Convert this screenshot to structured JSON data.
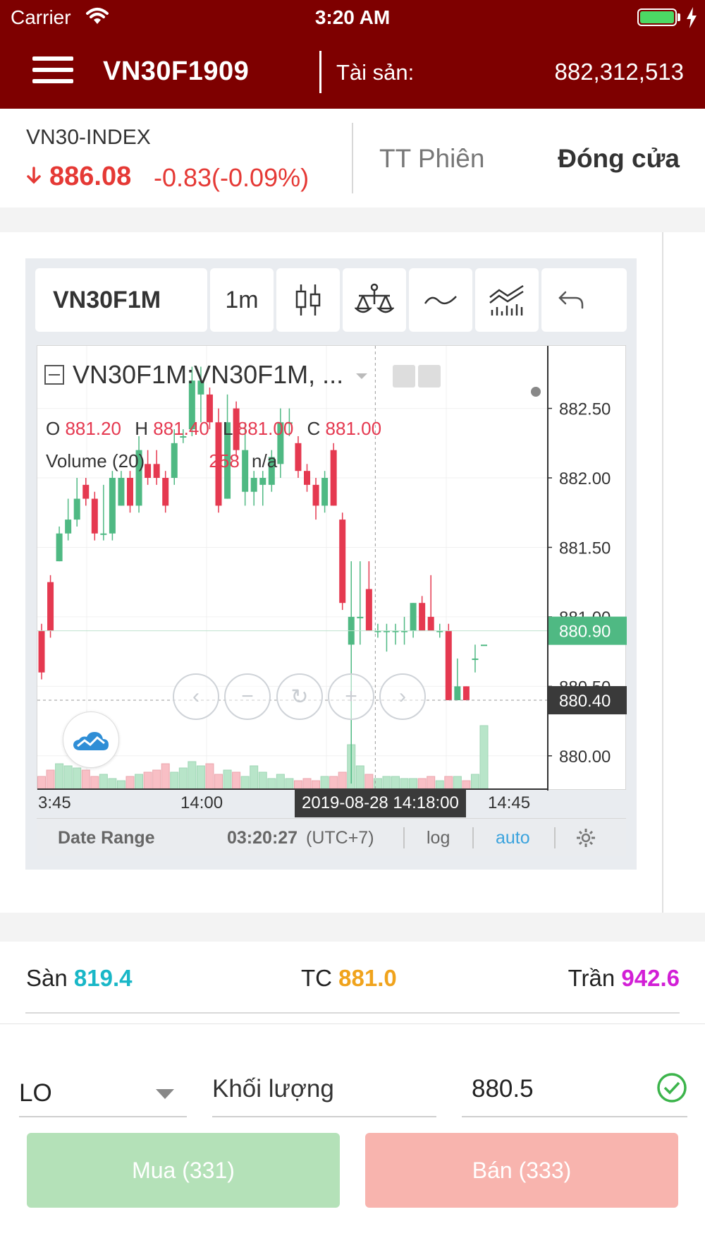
{
  "status_bar": {
    "carrier": "Carrier",
    "time": "3:20 AM"
  },
  "header": {
    "symbol": "VN30F1909",
    "asset_label": "Tài sản:",
    "asset_value": "882,312,513"
  },
  "index": {
    "name": "VN30-INDEX",
    "value": "886.08",
    "change": "-0.83(-0.09%)",
    "session_label": "TT Phiên",
    "session_state": "Đóng cửa"
  },
  "chart_toolbar": {
    "symbol": "VN30F1M",
    "interval": "1m"
  },
  "chart_legend": {
    "title": "VN30F1M:VN30F1M, ...",
    "o_label": "O",
    "o": "881.20",
    "h_label": "H",
    "h": "881.40",
    "l_label": "L",
    "l": "881.00",
    "c_label": "C",
    "c": "881.00",
    "volume_label": "Volume (20)",
    "volume_value": "258",
    "volume_ma": "n/a"
  },
  "chart_time_labels": {
    "left": "3:45",
    "mid": "14:00",
    "crosshair": "2019-08-28 14:18:00",
    "right": "14:45"
  },
  "chart_bottom_bar": {
    "date_range": "Date Range",
    "clock": "03:20:27",
    "timezone": "(UTC+7)",
    "log": "log",
    "auto": "auto"
  },
  "chart_data": {
    "type": "candlestick",
    "ylim": [
      879.75,
      882.95
    ],
    "y_ticks": [
      "882.50",
      "882.00",
      "881.50",
      "881.00",
      "880.50",
      "880.00"
    ],
    "price_labels": {
      "last": "880.90",
      "crosshair": "880.40"
    },
    "candles": [
      [
        880.9,
        880.6,
        880.95,
        880.55
      ],
      [
        881.25,
        880.9,
        881.3,
        880.85
      ],
      [
        881.4,
        881.6,
        881.65,
        881.4
      ],
      [
        881.6,
        881.7,
        881.85,
        881.55
      ],
      [
        881.7,
        881.85,
        882.0,
        881.65
      ],
      [
        881.95,
        881.85,
        882.0,
        881.8
      ],
      [
        881.85,
        881.6,
        881.9,
        881.55
      ],
      [
        881.6,
        881.6,
        881.95,
        881.55
      ],
      [
        881.6,
        882.0,
        882.05,
        881.55
      ],
      [
        881.8,
        882.0,
        882.05,
        881.8
      ],
      [
        882.0,
        881.8,
        882.05,
        881.75
      ],
      [
        881.8,
        882.2,
        882.3,
        881.75
      ],
      [
        882.1,
        882.0,
        882.2,
        881.95
      ],
      [
        882.1,
        882.0,
        882.2,
        881.95
      ],
      [
        882.0,
        881.8,
        882.05,
        881.75
      ],
      [
        882.0,
        882.25,
        882.35,
        881.95
      ],
      [
        882.3,
        882.3,
        882.35,
        882.25
      ],
      [
        882.35,
        882.7,
        882.8,
        882.3
      ],
      [
        882.6,
        882.7,
        882.8,
        882.4
      ],
      [
        882.6,
        882.4,
        882.65,
        882.35
      ],
      [
        882.4,
        881.8,
        882.5,
        881.75
      ],
      [
        881.85,
        882.4,
        882.6,
        881.85
      ],
      [
        882.5,
        882.2,
        882.55,
        882.15
      ],
      [
        881.9,
        882.2,
        882.4,
        881.8
      ],
      [
        881.9,
        882.0,
        882.05,
        881.8
      ],
      [
        881.95,
        882.0,
        882.05,
        881.8
      ],
      [
        881.95,
        882.15,
        882.2,
        881.9
      ],
      [
        882.1,
        882.4,
        882.5,
        882.0
      ],
      [
        882.4,
        882.4,
        882.5,
        882.3
      ],
      [
        882.25,
        882.05,
        882.3,
        882.0
      ],
      [
        882.05,
        881.95,
        882.1,
        881.9
      ],
      [
        881.95,
        881.8,
        882.0,
        881.7
      ],
      [
        881.8,
        882.0,
        882.05,
        881.75
      ],
      [
        882.2,
        881.8,
        882.25,
        881.8
      ],
      [
        881.7,
        881.1,
        881.75,
        881.05
      ],
      [
        880.8,
        881.0,
        881.4,
        879.8
      ],
      [
        881.0,
        881.0,
        881.4,
        880.8
      ],
      [
        881.2,
        880.9,
        881.4,
        880.9
      ],
      [
        880.9,
        880.9,
        880.95,
        880.85
      ],
      [
        880.9,
        880.9,
        880.95,
        880.75
      ],
      [
        880.9,
        880.9,
        880.95,
        880.8
      ],
      [
        880.9,
        880.9,
        881.0,
        880.8
      ],
      [
        880.9,
        881.1,
        881.1,
        880.85
      ],
      [
        881.1,
        880.9,
        881.15,
        880.9
      ],
      [
        881.0,
        880.9,
        881.3,
        880.9
      ],
      [
        880.9,
        880.9,
        880.95,
        880.85
      ],
      [
        880.9,
        880.4,
        880.95,
        880.4
      ],
      [
        880.4,
        880.5,
        880.7,
        880.4
      ],
      [
        880.5,
        880.4,
        880.5,
        880.4
      ],
      [
        880.7,
        880.7,
        880.8,
        880.6
      ],
      [
        880.8,
        880.8,
        880.8,
        880.8
      ]
    ],
    "volumes": [
      12,
      18,
      24,
      22,
      20,
      18,
      12,
      14,
      10,
      8,
      12,
      14,
      16,
      18,
      24,
      16,
      20,
      26,
      22,
      24,
      14,
      18,
      16,
      12,
      22,
      16,
      10,
      14,
      10,
      8,
      10,
      8,
      12,
      12,
      16,
      42,
      22,
      14,
      10,
      12,
      12,
      10,
      10,
      10,
      12,
      8,
      12,
      12,
      8,
      14,
      60
    ]
  },
  "price_refs": {
    "floor_label": "Sàn",
    "floor": "819.4",
    "ref_label": "TC",
    "ref": "881.0",
    "ceiling_label": "Trần",
    "ceiling": "942.6"
  },
  "order_form": {
    "order_type": "LO",
    "quantity_placeholder": "Khối lượng",
    "price": "880.5",
    "buy": "Mua (331)",
    "sell": "Bán (333)"
  },
  "colors": {
    "header": "#7e0000",
    "up": "#4fb983",
    "down": "#e53950",
    "floor": "#19b7c7",
    "ref": "#f0a31c",
    "ceiling": "#d21fd6"
  }
}
